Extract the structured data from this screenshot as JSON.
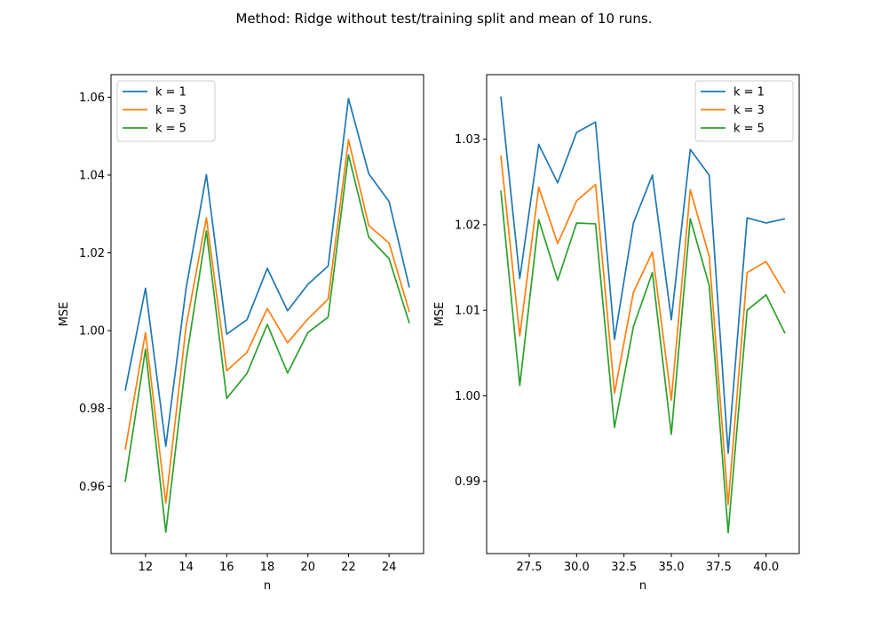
{
  "figure": {
    "suptitle": "Method: Ridge without test/training split and mean of 10 runs."
  },
  "series_colors": [
    "#1f77b4",
    "#ff7f0e",
    "#2ca02c"
  ],
  "chart_data": [
    {
      "type": "line",
      "title": "",
      "xlabel": "n",
      "ylabel": "MSE",
      "grid": false,
      "legend_position": "upper-left",
      "xlim": [
        10.3,
        25.7
      ],
      "ylim": [
        0.9427,
        1.0658
      ],
      "xticks": [
        12,
        14,
        16,
        18,
        20,
        22,
        24
      ],
      "xtick_labels": [
        "12",
        "14",
        "16",
        "18",
        "20",
        "22",
        "24"
      ],
      "yticks": [
        0.96,
        0.98,
        1.0,
        1.02,
        1.04,
        1.06
      ],
      "ytick_labels": [
        "0.96",
        "0.98",
        "1.00",
        "1.02",
        "1.04",
        "1.06"
      ],
      "x": [
        11,
        12,
        13,
        14,
        15,
        16,
        17,
        18,
        19,
        20,
        21,
        22,
        23,
        24,
        25
      ],
      "series": [
        {
          "name": "k = 1",
          "values": [
            0.9846,
            1.0109,
            0.9703,
            1.0109,
            1.0401,
            0.9991,
            1.0028,
            1.016,
            1.0051,
            1.0119,
            1.0166,
            1.0597,
            1.0403,
            1.0332,
            1.0111
          ]
        },
        {
          "name": "k = 3",
          "values": [
            0.9694,
            0.9995,
            0.9557,
            1.0011,
            1.029,
            0.9897,
            0.9944,
            1.0057,
            0.9969,
            1.003,
            1.0081,
            1.0491,
            1.027,
            1.0225,
            1.0048
          ]
        },
        {
          "name": "k = 5",
          "values": [
            0.9611,
            0.9952,
            0.9482,
            0.9925,
            1.0256,
            0.9826,
            0.989,
            1.0016,
            0.9891,
            0.9995,
            1.0035,
            1.0452,
            1.024,
            1.0185,
            1.0019
          ]
        }
      ]
    },
    {
      "type": "line",
      "title": "",
      "xlabel": "n",
      "ylabel": "MSE",
      "grid": false,
      "legend_position": "upper-right",
      "xlim": [
        25.25,
        41.75
      ],
      "ylim": [
        0.98155,
        1.03755
      ],
      "xticks": [
        27.5,
        30.0,
        32.5,
        35.0,
        37.5,
        40.0
      ],
      "xtick_labels": [
        "27.5",
        "30.0",
        "32.5",
        "35.0",
        "37.5",
        "40.0"
      ],
      "yticks": [
        0.99,
        1.0,
        1.01,
        1.02,
        1.03
      ],
      "ytick_labels": [
        "0.99",
        "1.00",
        "1.01",
        "1.02",
        "1.03"
      ],
      "x": [
        26,
        27,
        28,
        29,
        30,
        31,
        32,
        33,
        34,
        35,
        36,
        37,
        38,
        39,
        40,
        41
      ],
      "series": [
        {
          "name": "k = 1",
          "values": [
            1.035,
            1.0137,
            1.0294,
            1.0249,
            1.0308,
            1.032,
            1.0066,
            1.0202,
            1.0258,
            1.0089,
            1.0288,
            1.0258,
            0.9933,
            1.0208,
            1.0202,
            1.0207
          ]
        },
        {
          "name": "k = 3",
          "values": [
            1.0281,
            1.007,
            1.0244,
            1.0178,
            1.0228,
            1.0247,
            1.0003,
            1.0121,
            1.0168,
            0.9995,
            1.0241,
            1.0163,
            0.9873,
            1.0144,
            1.0157,
            1.012
          ]
        },
        {
          "name": "k = 5",
          "values": [
            1.024,
            1.0012,
            1.0206,
            1.0135,
            1.0202,
            1.0201,
            0.9963,
            1.0081,
            1.0144,
            0.9955,
            1.0207,
            1.0129,
            0.984,
            1.01,
            1.0118,
            1.0073
          ]
        }
      ]
    }
  ]
}
